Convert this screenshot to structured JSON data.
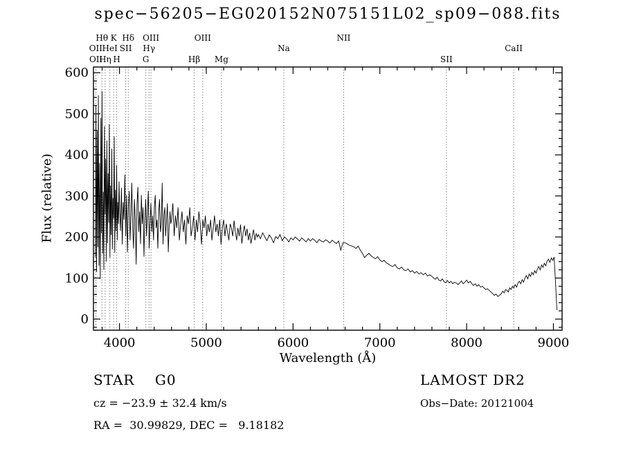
{
  "chart_data": {
    "type": "line",
    "title": "spec−56205−EG020152N075151L02_sp09−088.fits",
    "xlabel": "Wavelength (Å)",
    "ylabel": "Flux (relative)",
    "xlim": [
      3700,
      9100
    ],
    "ylim": [
      -27,
      614
    ],
    "xticks": [
      4000,
      5000,
      6000,
      7000,
      8000,
      9000
    ],
    "yticks": [
      0,
      100,
      200,
      300,
      400,
      500,
      600
    ],
    "x_minor_step": 200,
    "y_minor_step": 20,
    "grid": false,
    "legend": "none",
    "line_color": "#000000",
    "marker_line_color": "#555555",
    "line_markers": [
      {
        "label": "Hθ",
        "row": 0,
        "wavelength": 3798
      },
      {
        "label": "K",
        "row": 0,
        "wavelength": 3933
      },
      {
        "label": "Hδ",
        "row": 0,
        "wavelength": 4101
      },
      {
        "label": "OIII",
        "row": 0,
        "wavelength": 4363
      },
      {
        "label": "OIII",
        "row": 0,
        "wavelength": 4959
      },
      {
        "label": "NII",
        "row": 0,
        "wavelength": 6583
      },
      {
        "label": "OII",
        "row": 1,
        "wavelength": 3727
      },
      {
        "label": "HeI",
        "row": 1,
        "wavelength": 3889
      },
      {
        "label": "SII",
        "row": 1,
        "wavelength": 4072
      },
      {
        "label": "Hγ",
        "row": 1,
        "wavelength": 4340
      },
      {
        "label": "Na",
        "row": 1,
        "wavelength": 5893
      },
      {
        "label": "CaII",
        "row": 1,
        "wavelength": 8542
      },
      {
        "label": "OII",
        "row": 2,
        "wavelength": 3729
      },
      {
        "label": "Hη",
        "row": 2,
        "wavelength": 3835
      },
      {
        "label": "H",
        "row": 2,
        "wavelength": 3968
      },
      {
        "label": "G",
        "row": 2,
        "wavelength": 4304
      },
      {
        "label": "Hβ",
        "row": 2,
        "wavelength": 4861
      },
      {
        "label": "Mg",
        "row": 2,
        "wavelength": 5175
      },
      {
        "label": "SII",
        "row": 2,
        "wavelength": 7767
      }
    ],
    "series": [
      {
        "name": "spectrum",
        "segments": [
          {
            "start": 3722,
            "step": 7,
            "flux": [
              150,
              520,
              115,
              460,
              175,
              545,
              130,
              380,
              98,
              490,
              210,
              555,
              160,
              310,
              120,
              470,
              255,
              390,
              140,
              435,
              185,
              355,
              235,
              475,
              150,
              325,
              205,
              415,
              170,
              295,
              245,
              445,
              162,
              315,
              215,
              375,
              192,
              285,
              232,
              335
            ]
          },
          {
            "start": 4002,
            "step": 10,
            "flux": [
              262,
              215,
              320,
              182,
              285,
              242,
              352,
              202,
              302,
              163,
              272,
              312,
              192,
              252,
              332,
              222,
              172,
              292,
              242,
              133,
              282,
              322,
              212,
              262,
              183,
              302,
              232,
              272,
              152,
              242,
              292,
              202,
              262,
              312,
              172,
              232,
              282,
              212,
              252,
              192,
              272,
              302,
              222,
              242,
              172,
              262,
              292,
              212,
              232,
              332,
              182,
              252,
              272,
              202,
              242,
              282,
              163,
              222,
              262,
              232
            ]
          },
          {
            "start": 4600,
            "step": 15,
            "flux": [
              242,
              282,
              202,
              252,
              222,
              272,
              192,
              232,
              262,
              212,
              242,
              182,
              252,
              232,
              272,
              202,
              222,
              252,
              192,
              242,
              212,
              262,
              232,
              182,
              242,
              222,
              252,
              202,
              232,
              212,
              242,
              192,
              222,
              252,
              212,
              232,
              202,
              242,
              182,
              222,
              242,
              202,
              232,
              212,
              192,
              232,
              222,
              202,
              240,
              212,
              192,
              222,
              202,
              230,
              184,
              212,
              228,
              202,
              220,
              192,
              210,
              184,
              202,
              218,
              192,
              208,
              200
            ]
          },
          {
            "start": 5600,
            "step": 25,
            "flux": [
              206,
              196,
              210,
              200,
              191,
              205,
              198,
              186,
              201,
              196,
              206,
              191,
              200,
              196,
              188,
              198,
              193,
              200,
              195,
              190,
              198,
              193,
              188,
              196,
              190,
              196,
              192,
              186,
              194,
              190,
              188,
              193,
              190,
              185,
              192,
              188,
              184,
              190,
              168,
              186
            ]
          },
          {
            "start": 6600,
            "step": 25,
            "flux": [
              186,
              183,
              180,
              178,
              176,
              172,
              178,
              168,
              160,
              150,
              156,
              160,
              154,
              150,
              147,
              152,
              144,
              140,
              143,
              137,
              134,
              130,
              128,
              133,
              125,
              122,
              127,
              120,
              118,
              122,
              115,
              118,
              112,
              116,
              110,
              113,
              108,
              112,
              105,
              108
            ]
          },
          {
            "start": 7600,
            "step": 20,
            "flux": [
              104,
              100,
              97,
              102,
              95,
              93,
              98,
              91,
              89,
              94,
              88,
              92,
              86,
              90,
              88,
              84,
              88,
              93,
              86,
              90,
              95,
              88,
              92,
              86,
              82,
              86,
              80,
              84,
              78,
              80,
              76,
              72,
              74,
              70,
              66,
              62,
              58,
              61,
              55,
              58
            ]
          },
          {
            "start": 8400,
            "step": 16,
            "flux": [
              62,
              68,
              64,
              72,
              70,
              66,
              76,
              72,
              80,
              76,
              84,
              78,
              88,
              92,
              86,
              96,
              90,
              100,
              106,
              98,
              110,
              104,
              114,
              108,
              118,
              112,
              122,
              128,
              120,
              132,
              126,
              136,
              130,
              141,
              146,
              138,
              149,
              143,
              151,
              90,
              22
            ]
          }
        ]
      }
    ]
  },
  "footer": {
    "class_label": "STAR    G0",
    "survey": "LAMOST DR2",
    "cz": "cz = −23.9 ± 32.4 km/s",
    "obs_date": "Obs−Date: 20121004",
    "radec": "RA =  30.99829, DEC =   9.18182"
  }
}
